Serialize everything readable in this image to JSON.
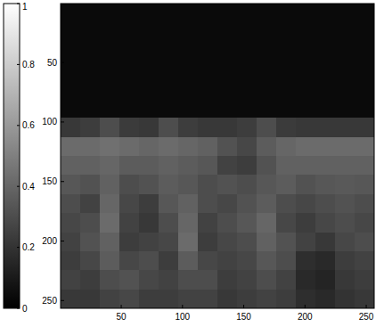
{
  "chart_data": {
    "type": "heatmap",
    "xlim": [
      0.5,
      256.5
    ],
    "xticks": [
      50,
      100,
      150,
      200,
      250
    ],
    "ylim": [
      0.5,
      256.5
    ],
    "yticks": [
      50,
      100,
      150,
      200,
      250
    ],
    "colorbar": {
      "range": [
        0,
        1
      ],
      "ticks": [
        0,
        0.2,
        0.4,
        0.6,
        0.8,
        1
      ]
    },
    "cells": [
      [
        0.04,
        0.04,
        0.04,
        0.04,
        0.04,
        0.04,
        0.04,
        0.04,
        0.04,
        0.04,
        0.04,
        0.04,
        0.04,
        0.04,
        0.04,
        0.04
      ],
      [
        0.04,
        0.04,
        0.04,
        0.04,
        0.04,
        0.04,
        0.04,
        0.04,
        0.04,
        0.04,
        0.04,
        0.04,
        0.04,
        0.04,
        0.04,
        0.04
      ],
      [
        0.04,
        0.04,
        0.04,
        0.04,
        0.04,
        0.04,
        0.04,
        0.04,
        0.04,
        0.04,
        0.04,
        0.04,
        0.04,
        0.04,
        0.04,
        0.04
      ],
      [
        0.04,
        0.04,
        0.04,
        0.04,
        0.04,
        0.04,
        0.04,
        0.04,
        0.04,
        0.04,
        0.04,
        0.04,
        0.04,
        0.04,
        0.04,
        0.04
      ],
      [
        0.04,
        0.04,
        0.04,
        0.04,
        0.04,
        0.04,
        0.04,
        0.04,
        0.04,
        0.04,
        0.04,
        0.04,
        0.04,
        0.04,
        0.04,
        0.04
      ],
      [
        0.04,
        0.04,
        0.04,
        0.04,
        0.04,
        0.04,
        0.04,
        0.04,
        0.04,
        0.04,
        0.04,
        0.04,
        0.04,
        0.04,
        0.04,
        0.04
      ],
      [
        0.22,
        0.24,
        0.3,
        0.23,
        0.22,
        0.3,
        0.24,
        0.22,
        0.22,
        0.24,
        0.3,
        0.23,
        0.22,
        0.22,
        0.22,
        0.22
      ],
      [
        0.42,
        0.42,
        0.44,
        0.42,
        0.4,
        0.42,
        0.4,
        0.38,
        0.32,
        0.28,
        0.36,
        0.4,
        0.42,
        0.42,
        0.42,
        0.42
      ],
      [
        0.38,
        0.38,
        0.4,
        0.36,
        0.36,
        0.38,
        0.36,
        0.34,
        0.26,
        0.24,
        0.32,
        0.38,
        0.38,
        0.38,
        0.38,
        0.38
      ],
      [
        0.34,
        0.32,
        0.38,
        0.3,
        0.32,
        0.36,
        0.34,
        0.3,
        0.32,
        0.3,
        0.34,
        0.36,
        0.32,
        0.34,
        0.35,
        0.34
      ],
      [
        0.3,
        0.26,
        0.4,
        0.28,
        0.24,
        0.34,
        0.38,
        0.3,
        0.28,
        0.32,
        0.36,
        0.3,
        0.28,
        0.3,
        0.32,
        0.3
      ],
      [
        0.28,
        0.3,
        0.42,
        0.26,
        0.22,
        0.3,
        0.4,
        0.26,
        0.3,
        0.34,
        0.4,
        0.28,
        0.24,
        0.28,
        0.3,
        0.28
      ],
      [
        0.26,
        0.32,
        0.38,
        0.24,
        0.26,
        0.28,
        0.42,
        0.24,
        0.28,
        0.3,
        0.38,
        0.32,
        0.26,
        0.22,
        0.28,
        0.3
      ],
      [
        0.24,
        0.28,
        0.36,
        0.28,
        0.3,
        0.24,
        0.36,
        0.28,
        0.26,
        0.28,
        0.34,
        0.3,
        0.18,
        0.16,
        0.24,
        0.26
      ],
      [
        0.26,
        0.24,
        0.3,
        0.32,
        0.28,
        0.26,
        0.3,
        0.3,
        0.24,
        0.26,
        0.3,
        0.26,
        0.16,
        0.14,
        0.22,
        0.24
      ],
      [
        0.22,
        0.22,
        0.26,
        0.28,
        0.24,
        0.24,
        0.26,
        0.26,
        0.22,
        0.24,
        0.26,
        0.24,
        0.18,
        0.16,
        0.2,
        0.22
      ]
    ]
  }
}
